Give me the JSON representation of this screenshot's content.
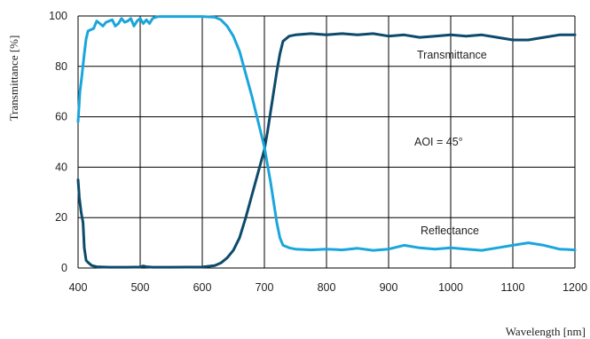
{
  "chart_data": {
    "type": "line",
    "xlabel": "Wavelength [nm]",
    "ylabel": "Transmittance [%]",
    "xlim": [
      400,
      1200
    ],
    "ylim": [
      0,
      100
    ],
    "xticks": [
      400,
      500,
      600,
      700,
      800,
      900,
      1000,
      1100,
      1200
    ],
    "yticks": [
      0,
      20,
      40,
      60,
      80,
      100
    ],
    "grid": true,
    "annotations": [
      "Transmittance",
      "AOI = 45°",
      "Reflectance"
    ],
    "colors": {
      "transmittance": "#0d4a6b",
      "reflectance": "#1aa6dc"
    },
    "series": [
      {
        "key": "transmittance",
        "x": [
          400,
          402,
          405,
          408,
          410,
          413,
          417,
          422,
          430,
          450,
          480,
          500,
          505,
          510,
          520,
          550,
          600,
          620,
          630,
          640,
          650,
          660,
          670,
          680,
          690,
          700,
          705,
          710,
          715,
          720,
          725,
          730,
          740,
          750,
          775,
          800,
          825,
          850,
          875,
          900,
          925,
          950,
          975,
          1000,
          1025,
          1050,
          1075,
          1100,
          1125,
          1150,
          1175,
          1200
        ],
        "y": [
          35,
          28,
          22,
          18,
          8,
          3,
          2,
          1,
          0.5,
          0.3,
          0.3,
          0.4,
          0.8,
          0.5,
          0.3,
          0.3,
          0.4,
          1,
          2,
          4,
          7,
          12,
          20,
          29,
          38,
          47,
          54,
          62,
          70,
          78,
          85,
          90,
          92,
          92.5,
          93,
          92.5,
          93,
          92.5,
          93,
          92,
          92.5,
          91.5,
          92,
          92.5,
          92,
          92.5,
          91.5,
          90.5,
          90.5,
          91.5,
          92.5,
          92.5
        ]
      },
      {
        "key": "reflectance",
        "x": [
          400,
          403,
          406,
          410,
          413,
          416,
          420,
          425,
          430,
          435,
          440,
          445,
          450,
          455,
          460,
          465,
          470,
          475,
          480,
          485,
          490,
          495,
          500,
          505,
          510,
          515,
          520,
          525,
          530,
          550,
          600,
          620,
          630,
          640,
          650,
          660,
          670,
          680,
          690,
          700,
          705,
          710,
          715,
          720,
          725,
          730,
          740,
          750,
          775,
          800,
          825,
          850,
          875,
          900,
          925,
          950,
          975,
          1000,
          1025,
          1050,
          1075,
          1100,
          1125,
          1150,
          1175,
          1200
        ],
        "y": [
          58,
          70,
          76,
          85,
          91,
          94,
          94.5,
          95,
          98,
          97,
          96,
          97.5,
          98,
          98.5,
          96,
          97,
          99,
          97.5,
          98,
          99,
          96,
          98,
          99,
          97,
          98.5,
          97,
          99,
          99.5,
          99.8,
          99.8,
          99.8,
          99.5,
          98.5,
          96,
          92,
          86,
          77,
          68,
          58,
          48,
          41,
          34,
          26,
          18,
          12,
          9,
          8,
          7.5,
          7.2,
          7.5,
          7.2,
          7.8,
          7,
          7.5,
          9,
          8,
          7.5,
          8,
          7.5,
          7,
          8,
          9,
          10,
          9,
          7.5,
          7.2
        ]
      }
    ]
  }
}
